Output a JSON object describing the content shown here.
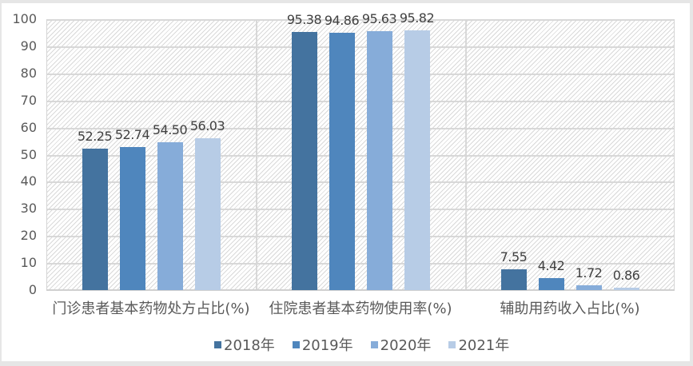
{
  "chart_data": {
    "type": "bar",
    "title": "",
    "xlabel": "",
    "ylabel": "",
    "ylim": [
      0,
      100
    ],
    "yticks": [
      0,
      10,
      20,
      30,
      40,
      50,
      60,
      70,
      80,
      90,
      100
    ],
    "grid": true,
    "legend_position": "bottom",
    "categories": [
      "门诊患者基本药物处方占比(%)",
      "住院患者基本药物使用率(%)",
      "辅助用药收入占比(%)"
    ],
    "series": [
      {
        "name": "2018年",
        "color": "#44739f",
        "values": [
          52.25,
          95.38,
          7.55
        ],
        "labels": [
          "52.25",
          "95.38",
          "7.55"
        ]
      },
      {
        "name": "2019年",
        "color": "#4f86bd",
        "values": [
          52.74,
          94.86,
          4.42
        ],
        "labels": [
          "52.74",
          "94.86",
          "4.42"
        ]
      },
      {
        "name": "2020年",
        "color": "#86acd9",
        "values": [
          54.5,
          95.63,
          1.72
        ],
        "labels": [
          "54.50",
          "95.63",
          "1.72"
        ]
      },
      {
        "name": "2021年",
        "color": "#b7cce6",
        "values": [
          56.03,
          95.82,
          0.86
        ],
        "labels": [
          "56.03",
          "95.82",
          "0.86"
        ]
      }
    ]
  },
  "legend": {
    "items": [
      "2018年",
      "2019年",
      "2020年",
      "2021年"
    ]
  }
}
